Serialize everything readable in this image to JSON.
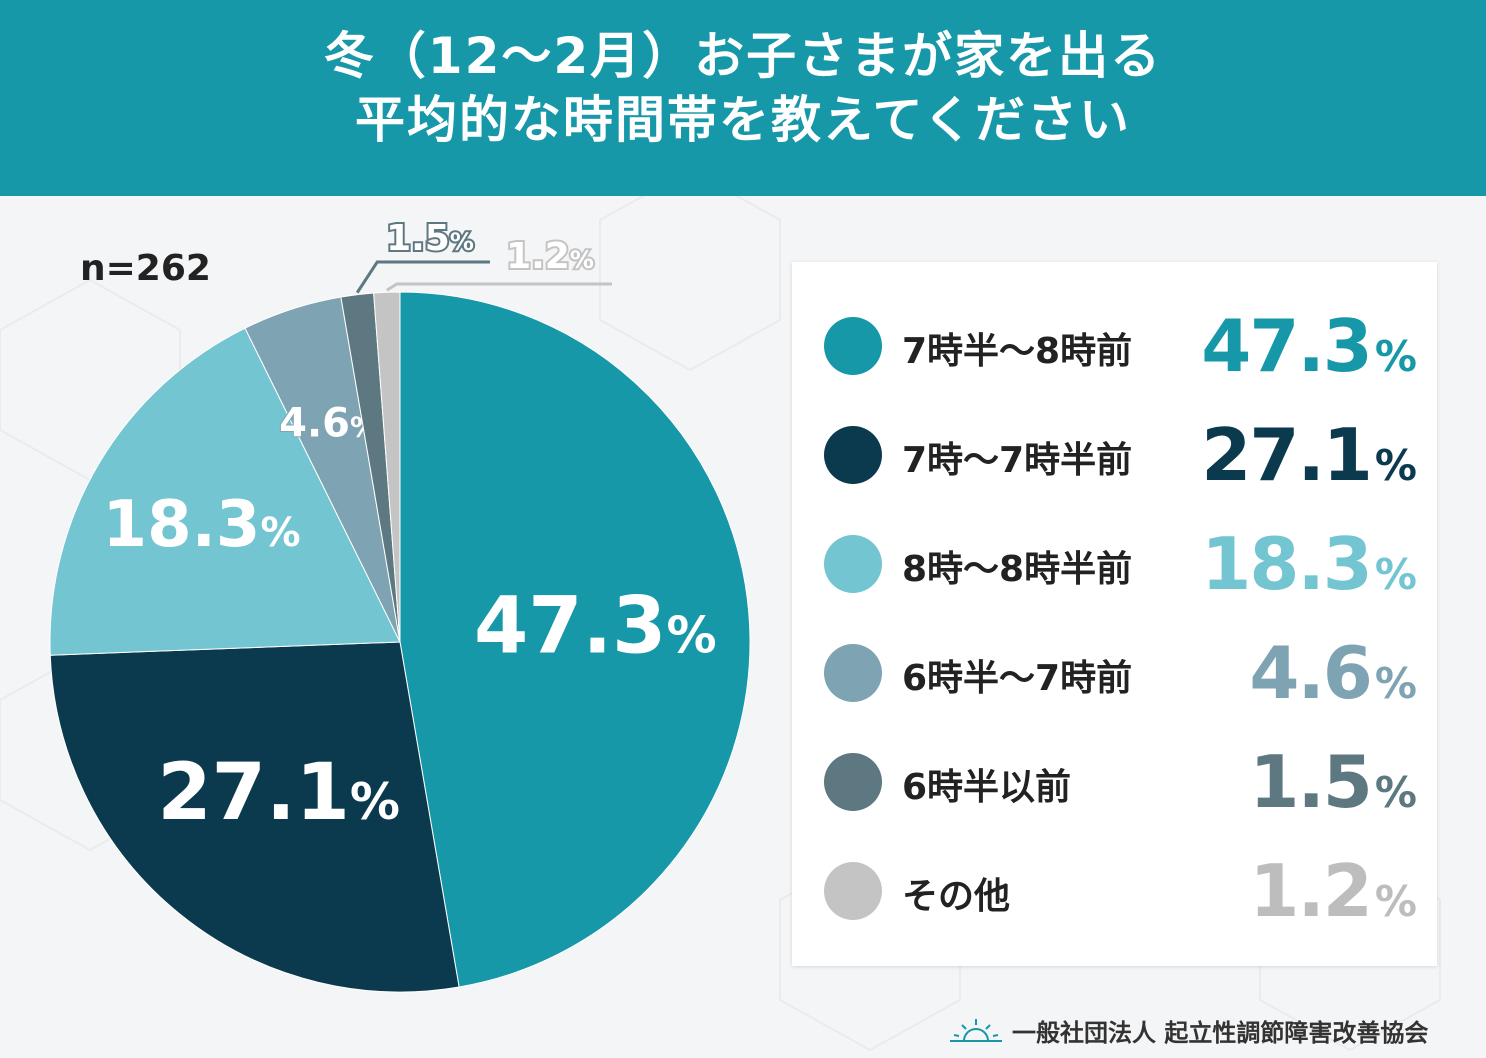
{
  "header": {
    "title_line1": "冬（12～2月）お子さまが家を出る",
    "title_line2": "平均的な時間帯を教えてください"
  },
  "sample_size": "n=262",
  "colors": {
    "header": "#1798a8",
    "s1": "#1798a8",
    "s2": "#0b3a4e",
    "s3": "#74c5d2",
    "s4": "#7ea3b2",
    "s5": "#5d7880",
    "s6": "#c4c4c4"
  },
  "chart_data": {
    "type": "pie",
    "title": "冬（12～2月）お子さまが家を出る平均的な時間帯を教えてください",
    "unit": "%",
    "slices": [
      {
        "label": "7時半～8時前",
        "value": 47.3,
        "display": "47.3",
        "color": "#1798a8"
      },
      {
        "label": "7時～7時半前",
        "value": 27.1,
        "display": "27.1",
        "color": "#0b3a4e"
      },
      {
        "label": "8時～8時半前",
        "value": 18.3,
        "display": "18.3",
        "color": "#74c5d2"
      },
      {
        "label": "6時半～7時前",
        "value": 4.6,
        "display": "4.6",
        "color": "#7ea3b2"
      },
      {
        "label": "6時半以前",
        "value": 1.5,
        "display": "1.5",
        "color": "#5d7880"
      },
      {
        "label": "その他",
        "value": 1.2,
        "display": "1.2",
        "color": "#c4c4c4"
      }
    ],
    "legend_position": "right"
  },
  "pct_symbol": "%",
  "footer": {
    "org": "一般社団法人 起立性調節障害改善協会",
    "logo_icon": "sunrise-icon"
  }
}
